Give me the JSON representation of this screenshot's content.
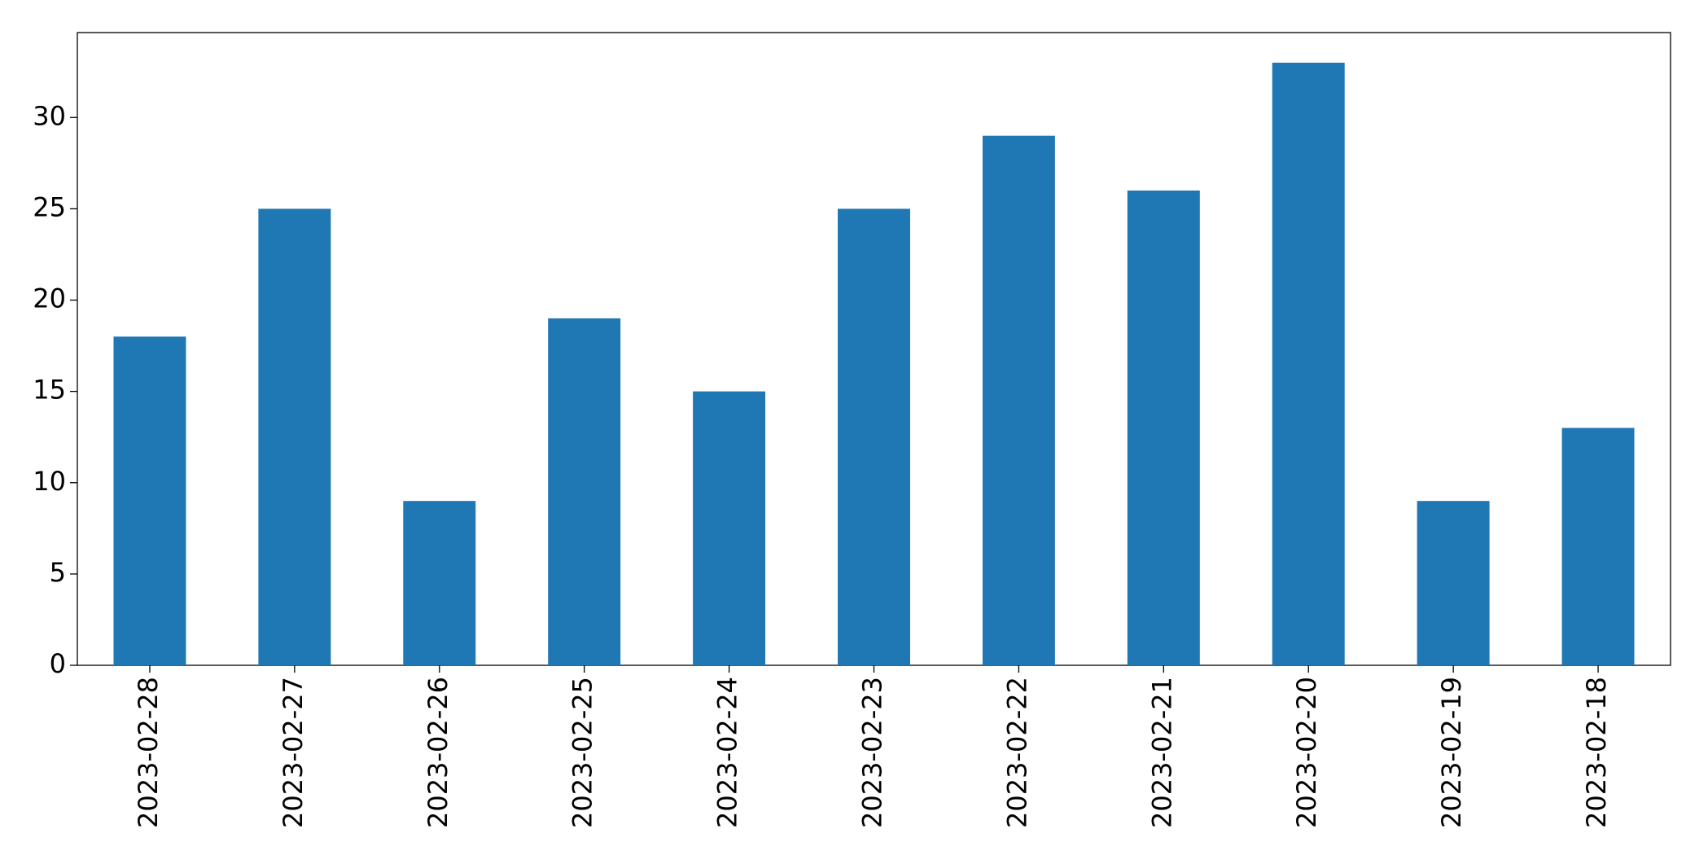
{
  "chart_data": {
    "type": "bar",
    "categories": [
      "2023-02-28",
      "2023-02-27",
      "2023-02-26",
      "2023-02-25",
      "2023-02-24",
      "2023-02-23",
      "2023-02-22",
      "2023-02-21",
      "2023-02-20",
      "2023-02-19",
      "2023-02-18"
    ],
    "values": [
      18,
      25,
      9,
      19,
      15,
      25,
      29,
      26,
      33,
      9,
      13
    ],
    "color": "#1f77b4",
    "ylim": [
      0,
      34.65
    ],
    "yticks": [
      0,
      5,
      10,
      15,
      20,
      25,
      30
    ],
    "grid": false
  }
}
